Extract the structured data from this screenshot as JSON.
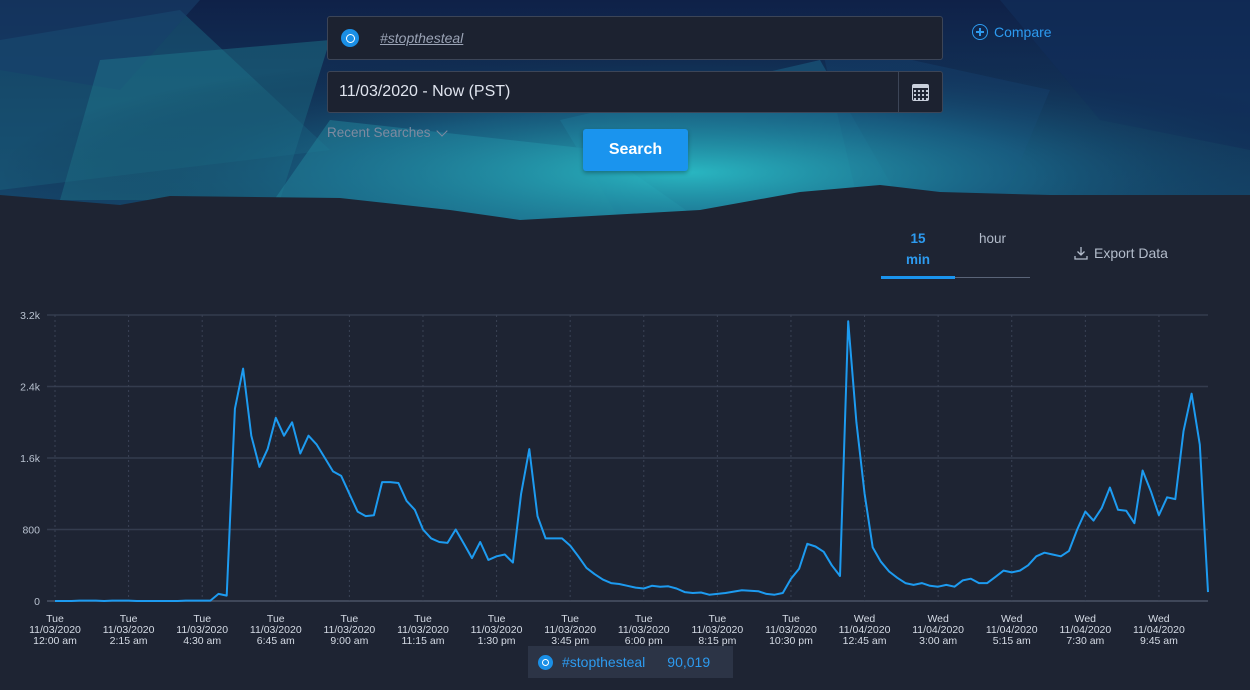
{
  "search": {
    "term": "#stopthesteal",
    "compare_label": "Compare"
  },
  "date_range": {
    "value": "11/03/2020 - Now (PST)"
  },
  "recent_searches_label": "Recent Searches",
  "search_button_label": "Search",
  "interval_tabs": [
    {
      "line1": "15",
      "line2": "min",
      "active": true
    },
    {
      "line1": "hour",
      "line2": "",
      "active": false
    }
  ],
  "export_label": "Export Data",
  "legend": {
    "term": "#stopthesteal",
    "count": "90,019"
  },
  "colors": {
    "accent": "#1a94ee",
    "line": "#1d9bf0",
    "background": "#1e2433"
  },
  "chart_data": {
    "type": "line",
    "title": "",
    "xlabel": "",
    "ylabel": "",
    "ylim": [
      0,
      3200
    ],
    "y_ticks": [
      {
        "value": 0,
        "label": "0"
      },
      {
        "value": 800,
        "label": "800"
      },
      {
        "value": 1600,
        "label": "1.6k"
      },
      {
        "value": 2400,
        "label": "2.4k"
      },
      {
        "value": 3200,
        "label": "3.2k"
      }
    ],
    "x_ticks": [
      {
        "index": 0,
        "day": "Tue",
        "date": "11/03/2020",
        "time": "12:00 am"
      },
      {
        "index": 9,
        "day": "Tue",
        "date": "11/03/2020",
        "time": "2:15 am"
      },
      {
        "index": 18,
        "day": "Tue",
        "date": "11/03/2020",
        "time": "4:30 am"
      },
      {
        "index": 27,
        "day": "Tue",
        "date": "11/03/2020",
        "time": "6:45 am"
      },
      {
        "index": 36,
        "day": "Tue",
        "date": "11/03/2020",
        "time": "9:00 am"
      },
      {
        "index": 45,
        "day": "Tue",
        "date": "11/03/2020",
        "time": "11:15 am"
      },
      {
        "index": 54,
        "day": "Tue",
        "date": "11/03/2020",
        "time": "1:30 pm"
      },
      {
        "index": 63,
        "day": "Tue",
        "date": "11/03/2020",
        "time": "3:45 pm"
      },
      {
        "index": 72,
        "day": "Tue",
        "date": "11/03/2020",
        "time": "6:00 pm"
      },
      {
        "index": 81,
        "day": "Tue",
        "date": "11/03/2020",
        "time": "8:15 pm"
      },
      {
        "index": 90,
        "day": "Tue",
        "date": "11/03/2020",
        "time": "10:30 pm"
      },
      {
        "index": 99,
        "day": "Wed",
        "date": "11/04/2020",
        "time": "12:45 am"
      },
      {
        "index": 108,
        "day": "Wed",
        "date": "11/04/2020",
        "time": "3:00 am"
      },
      {
        "index": 117,
        "day": "Wed",
        "date": "11/04/2020",
        "time": "5:15 am"
      },
      {
        "index": 126,
        "day": "Wed",
        "date": "11/04/2020",
        "time": "7:30 am"
      },
      {
        "index": 135,
        "day": "Wed",
        "date": "11/04/2020",
        "time": "9:45 am"
      }
    ],
    "series": [
      {
        "name": "#stopthesteal",
        "values": [
          0,
          0,
          0,
          5,
          5,
          5,
          0,
          5,
          5,
          5,
          0,
          0,
          0,
          0,
          0,
          0,
          5,
          5,
          5,
          5,
          80,
          60,
          2150,
          2600,
          1850,
          1500,
          1700,
          2050,
          1850,
          2000,
          1650,
          1850,
          1750,
          1600,
          1450,
          1400,
          1200,
          1000,
          950,
          960,
          1330,
          1330,
          1320,
          1120,
          1020,
          800,
          700,
          660,
          650,
          800,
          640,
          480,
          660,
          460,
          500,
          520,
          430,
          1200,
          1700,
          950,
          700,
          700,
          700,
          620,
          500,
          370,
          300,
          240,
          200,
          190,
          170,
          150,
          140,
          170,
          160,
          165,
          140,
          100,
          90,
          95,
          70,
          80,
          90,
          105,
          120,
          115,
          110,
          80,
          70,
          90,
          250,
          360,
          640,
          610,
          550,
          400,
          280,
          3130,
          2000,
          1200,
          600,
          440,
          330,
          260,
          200,
          180,
          200,
          170,
          160,
          180,
          160,
          230,
          250,
          200,
          200,
          270,
          340,
          320,
          340,
          400,
          500,
          540,
          520,
          500,
          560,
          800,
          1000,
          900,
          1040,
          1270,
          1020,
          1010,
          870,
          1460,
          1230,
          960,
          1160,
          1140,
          1900,
          2320,
          1750,
          100
        ]
      }
    ]
  }
}
